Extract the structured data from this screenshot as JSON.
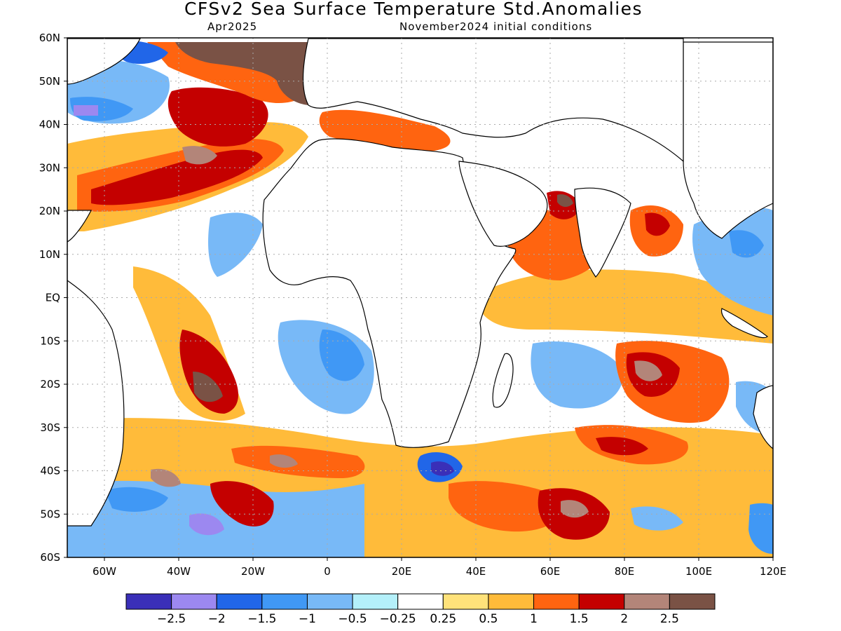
{
  "title": "CFSv2 Sea Surface Temperature Std.Anomalies",
  "subtitle_left": "Apr2025",
  "subtitle_right": "November2024 initial conditions",
  "map": {
    "lon_range": [
      -70,
      120
    ],
    "lat_range": [
      -60,
      60
    ],
    "lat_ticks": [
      "60N",
      "50N",
      "40N",
      "30N",
      "20N",
      "10N",
      "EQ",
      "10S",
      "20S",
      "30S",
      "40S",
      "50S",
      "60S"
    ],
    "lon_ticks": [
      "60W",
      "40W",
      "20W",
      "0",
      "20E",
      "40E",
      "60E",
      "80E",
      "100E",
      "120E"
    ],
    "grid": true,
    "land_color": "#ffffff",
    "coastline_color": "#000000"
  },
  "colorbar": {
    "colors": [
      "#3a2fb8",
      "#9c88f0",
      "#2166e8",
      "#4098f5",
      "#78b9f7",
      "#b4f0fa",
      "#ffffff",
      "#ffe27a",
      "#ffbb3a",
      "#ff6410",
      "#c40000",
      "#b38579",
      "#7a5245"
    ],
    "labels": [
      "−2.5",
      "−2",
      "−1.5",
      "−1",
      "−0.5",
      "−0.25",
      "0.25",
      "0.5",
      "1",
      "1.5",
      "2",
      "2.5"
    ]
  }
}
